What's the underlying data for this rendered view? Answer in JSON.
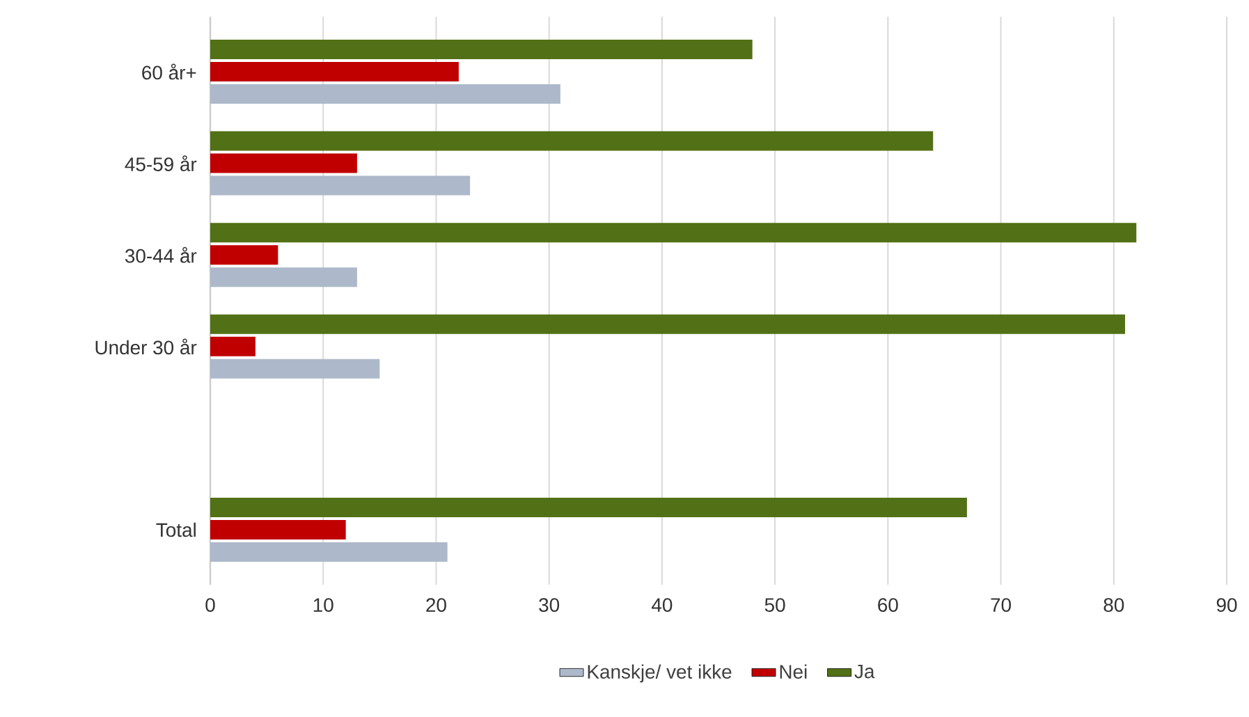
{
  "chart_data": {
    "type": "bar",
    "orientation": "horizontal",
    "categories": [
      "60 år+",
      "45-59 år",
      "30-44 år",
      "Under 30 år",
      null,
      "Total"
    ],
    "series": [
      {
        "name": "Kanskje/ vet ikke",
        "color": "#adb9ca",
        "values": [
          31,
          23,
          13,
          15,
          null,
          21
        ]
      },
      {
        "name": "Nei",
        "color": "#c00000",
        "values": [
          22,
          13,
          6,
          4,
          null,
          12
        ]
      },
      {
        "name": "Ja",
        "color": "#527015",
        "values": [
          48,
          64,
          82,
          81,
          null,
          67
        ]
      }
    ],
    "xlim": [
      0,
      90
    ],
    "xticks": [
      0,
      10,
      20,
      30,
      40,
      50,
      60,
      70,
      80,
      90
    ],
    "grid": "x",
    "legend": "bottom"
  }
}
